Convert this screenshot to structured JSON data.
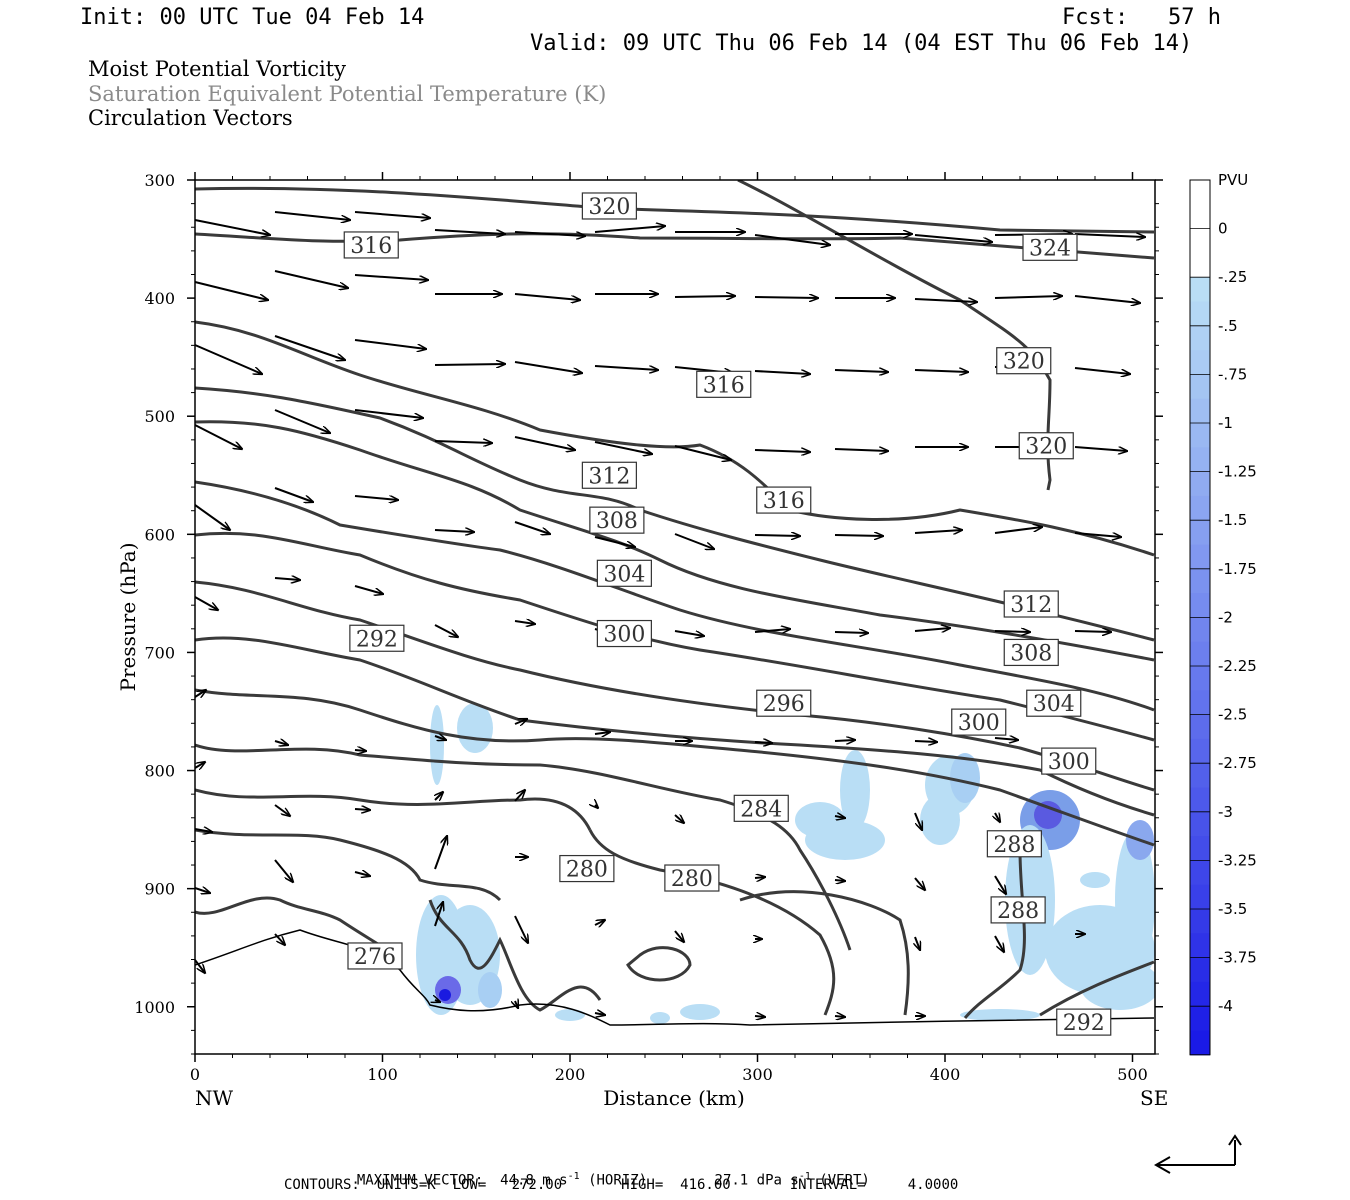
{
  "header": {
    "init": "Init: 00 UTC Tue 04 Feb 14",
    "fcst": "Fcst:   57 h",
    "valid": "Valid: 09 UTC Thu 06 Feb 14 (04 EST Thu 06 Feb 14)"
  },
  "fields": [
    "Moist Potential Vorticity",
    "Saturation Equivalent Potential Temperature (K)",
    "Circulation Vectors"
  ],
  "footer": {
    "max_vector_label": "MAXIMUM VECTOR:",
    "horiz_value": "44.8 m s",
    "horiz_unit": " (HORIZ)",
    "vert_value": "27.1 dPa s",
    "vert_unit": " (VERT)",
    "exp": "-1",
    "contours": "CONTOURS:  UNITS=K  LOW=   272.00       HIGH=  416.00       INTERVAL=     4.0000"
  },
  "colors": {
    "contour": "#3a3a3a",
    "pv_light": "#b9def5",
    "pv_dark": "#1a1ae6"
  },
  "chart_data": {
    "type": "cross-section",
    "ylabel": "Pressure (hPa)",
    "xlabel": "Distance (km)",
    "x_left_label": "NW",
    "x_right_label": "SE",
    "xlim": [
      0,
      512
    ],
    "ylim": [
      300,
      1040
    ],
    "yscale": "linear (inverted)",
    "x_ticks": [
      0,
      100,
      200,
      300,
      400,
      500
    ],
    "y_ticks": [
      300,
      400,
      500,
      600,
      700,
      800,
      900,
      1000
    ],
    "colorbar": {
      "unit": "PVU",
      "ticks": [
        "0",
        "-.25",
        "-.5",
        "-.75",
        "-1",
        "-1.25",
        "-1.5",
        "-1.75",
        "-2",
        "-2.25",
        "-2.5",
        "-2.75",
        "-3",
        "-3.25",
        "-3.5",
        "-3.75",
        "-4"
      ]
    },
    "contour_labels": [
      {
        "text": "320",
        "x": 221,
        "p": 322
      },
      {
        "text": "316",
        "x": 94,
        "p": 355
      },
      {
        "text": "324",
        "x": 456,
        "p": 357
      },
      {
        "text": "320",
        "x": 442,
        "p": 453
      },
      {
        "text": "316",
        "x": 282,
        "p": 473
      },
      {
        "text": "320",
        "x": 454,
        "p": 525
      },
      {
        "text": "312",
        "x": 221,
        "p": 550
      },
      {
        "text": "316",
        "x": 314,
        "p": 571
      },
      {
        "text": "308",
        "x": 225,
        "p": 588
      },
      {
        "text": "304",
        "x": 229,
        "p": 633
      },
      {
        "text": "312",
        "x": 446,
        "p": 659
      },
      {
        "text": "292",
        "x": 97,
        "p": 688
      },
      {
        "text": "300",
        "x": 229,
        "p": 684
      },
      {
        "text": "308",
        "x": 446,
        "p": 700
      },
      {
        "text": "296",
        "x": 314,
        "p": 743
      },
      {
        "text": "304",
        "x": 458,
        "p": 743
      },
      {
        "text": "300",
        "x": 418,
        "p": 759
      },
      {
        "text": "300",
        "x": 466,
        "p": 792
      },
      {
        "text": "284",
        "x": 302,
        "p": 832
      },
      {
        "text": "288",
        "x": 437,
        "p": 862
      },
      {
        "text": "280",
        "x": 209,
        "p": 883
      },
      {
        "text": "280",
        "x": 265,
        "p": 891
      },
      {
        "text": "288",
        "x": 439,
        "p": 918
      },
      {
        "text": "276",
        "x": 96,
        "p": 957
      },
      {
        "text": "292",
        "x": 474,
        "p": 1013
      }
    ],
    "theta_e_levels": [
      276,
      280,
      284,
      288,
      292,
      296,
      300,
      304,
      308,
      312,
      316,
      320,
      324
    ],
    "max_vector_horiz": "44.8 m s-1",
    "max_vector_vert": "27.1 dPa s-1"
  }
}
